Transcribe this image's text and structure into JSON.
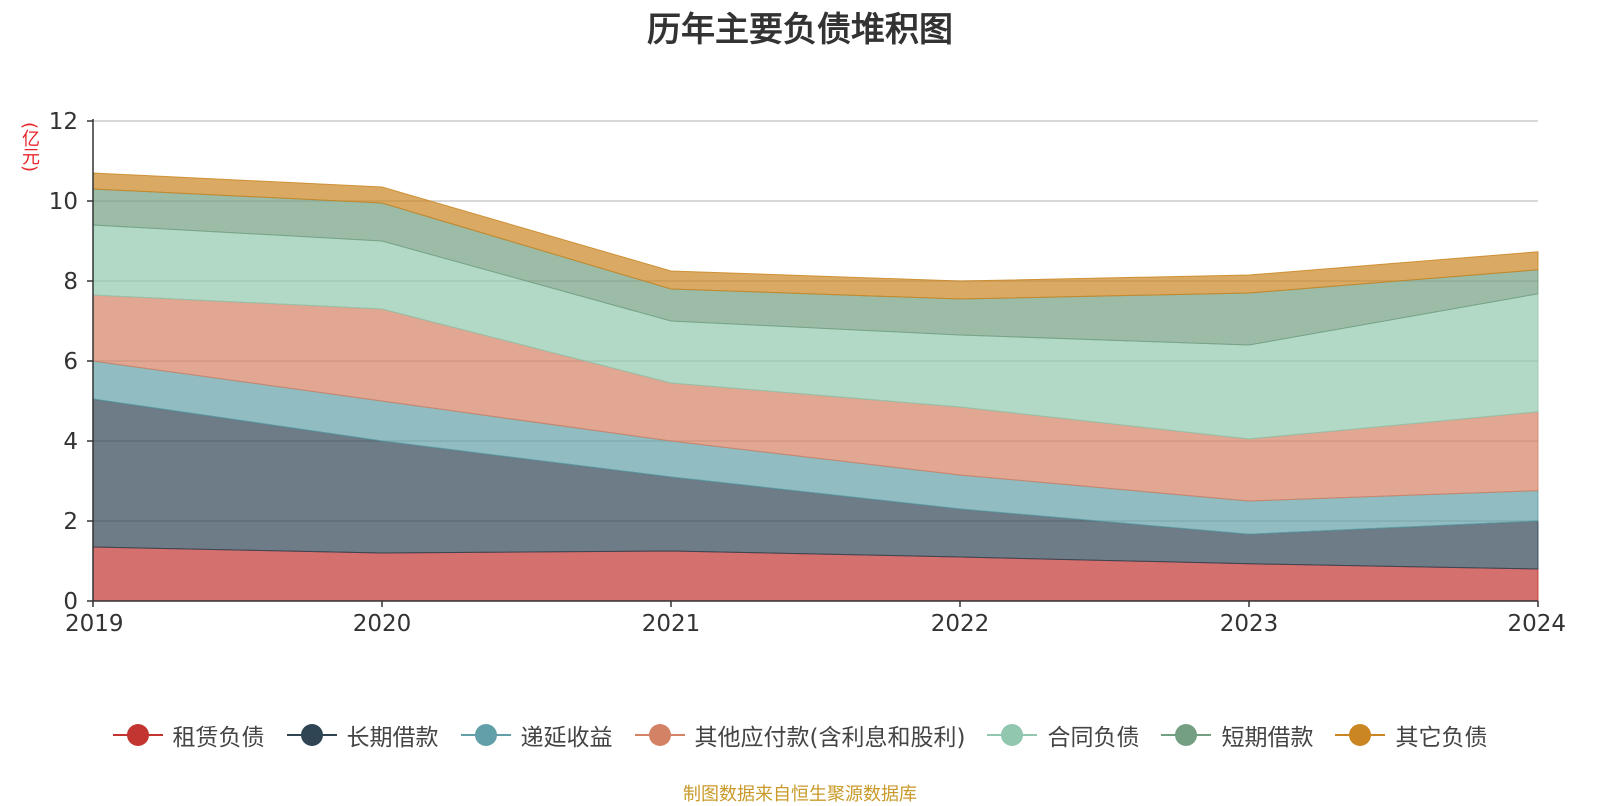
{
  "chart_data": {
    "type": "area",
    "stacked": true,
    "title": "历年主要负债堆积图",
    "ylabel": "(亿元)",
    "x": [
      "2019",
      "2020",
      "2021",
      "2022",
      "2023",
      "2024"
    ],
    "ylim": [
      0,
      12
    ],
    "yticks": [
      "0",
      "2",
      "4",
      "6",
      "8",
      "10",
      "12"
    ],
    "grid": true,
    "legend_position": "bottom",
    "series": [
      {
        "name": "租赁负债",
        "color": "#c23531",
        "values": [
          1.35,
          1.2,
          1.25,
          1.1,
          0.93,
          0.8
        ]
      },
      {
        "name": "长期借款",
        "color": "#2f4554",
        "values": [
          3.7,
          2.8,
          1.85,
          1.2,
          0.74,
          1.2
        ]
      },
      {
        "name": "递延收益",
        "color": "#61a0a8",
        "values": [
          0.95,
          1.0,
          0.9,
          0.85,
          0.83,
          0.76
        ]
      },
      {
        "name": "其他应付款(含利息和股利)",
        "color": "#d48265",
        "values": [
          1.65,
          2.3,
          1.45,
          1.7,
          1.55,
          1.97
        ]
      },
      {
        "name": "合同负债",
        "color": "#91c7ae",
        "values": [
          1.75,
          1.7,
          1.55,
          1.8,
          2.35,
          2.95
        ]
      },
      {
        "name": "短期借款",
        "color": "#749f83",
        "values": [
          0.9,
          0.95,
          0.8,
          0.9,
          1.3,
          0.6
        ]
      },
      {
        "name": "其它负债",
        "color": "#ca8622",
        "values": [
          0.4,
          0.4,
          0.45,
          0.45,
          0.45,
          0.45
        ]
      }
    ],
    "source": "制图数据来自恒生聚源数据库"
  }
}
